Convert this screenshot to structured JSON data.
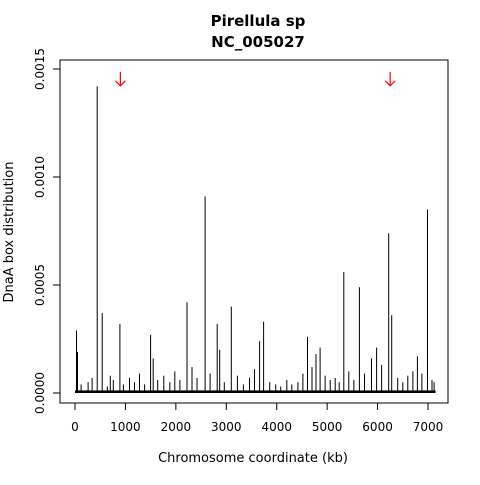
{
  "chart_data": {
    "type": "bar",
    "title": "Pirellula sp",
    "subtitle": "NC_005027",
    "xlabel": "Chromosome coordinate (kb)",
    "ylabel": "DnaA box distribution",
    "xlim": [
      0,
      7150
    ],
    "ylim": [
      0,
      0.0015
    ],
    "x_ticks": [
      0,
      1000,
      2000,
      3000,
      4000,
      5000,
      6000,
      7000
    ],
    "x_tick_labels": [
      "0",
      "1000",
      "2000",
      "3000",
      "4000",
      "5000",
      "6000",
      "7000"
    ],
    "y_ticks": [
      0,
      0.0005,
      0.001,
      0.0015
    ],
    "y_tick_labels": [
      "0.0000",
      "0.0005",
      "0.0010",
      "0.0015"
    ],
    "grid": false,
    "peaks": [
      {
        "x": 30,
        "y": 0.00029
      },
      {
        "x": 50,
        "y": 0.00019
      },
      {
        "x": 440,
        "y": 0.00142
      },
      {
        "x": 540,
        "y": 0.00037
      },
      {
        "x": 890,
        "y": 0.00032
      },
      {
        "x": 1500,
        "y": 0.00027
      },
      {
        "x": 1550,
        "y": 0.00016
      },
      {
        "x": 2220,
        "y": 0.00042
      },
      {
        "x": 2580,
        "y": 0.00091
      },
      {
        "x": 2820,
        "y": 0.00032
      },
      {
        "x": 2870,
        "y": 0.0002
      },
      {
        "x": 3100,
        "y": 0.0004
      },
      {
        "x": 3660,
        "y": 0.00024
      },
      {
        "x": 3740,
        "y": 0.00033
      },
      {
        "x": 4610,
        "y": 0.00026
      },
      {
        "x": 4780,
        "y": 0.00018
      },
      {
        "x": 4860,
        "y": 0.00021
      },
      {
        "x": 5330,
        "y": 0.00056
      },
      {
        "x": 5640,
        "y": 0.00049
      },
      {
        "x": 5880,
        "y": 0.00016
      },
      {
        "x": 5980,
        "y": 0.00021
      },
      {
        "x": 6220,
        "y": 0.00074
      },
      {
        "x": 6280,
        "y": 0.00036
      },
      {
        "x": 6790,
        "y": 0.00017
      },
      {
        "x": 6990,
        "y": 0.00085
      }
    ],
    "baseline_peaks": [
      {
        "x": 120,
        "y": 4e-05
      },
      {
        "x": 260,
        "y": 5e-05
      },
      {
        "x": 340,
        "y": 7e-05
      },
      {
        "x": 640,
        "y": 3e-05
      },
      {
        "x": 700,
        "y": 8e-05
      },
      {
        "x": 760,
        "y": 6e-05
      },
      {
        "x": 960,
        "y": 4e-05
      },
      {
        "x": 1080,
        "y": 7e-05
      },
      {
        "x": 1180,
        "y": 5e-05
      },
      {
        "x": 1280,
        "y": 9e-05
      },
      {
        "x": 1380,
        "y": 4e-05
      },
      {
        "x": 1640,
        "y": 6e-05
      },
      {
        "x": 1760,
        "y": 8e-05
      },
      {
        "x": 1880,
        "y": 5e-05
      },
      {
        "x": 1980,
        "y": 0.0001
      },
      {
        "x": 2080,
        "y": 6e-05
      },
      {
        "x": 2320,
        "y": 0.00012
      },
      {
        "x": 2420,
        "y": 7e-05
      },
      {
        "x": 2680,
        "y": 9e-05
      },
      {
        "x": 2960,
        "y": 5e-05
      },
      {
        "x": 3220,
        "y": 8e-05
      },
      {
        "x": 3340,
        "y": 4e-05
      },
      {
        "x": 3460,
        "y": 7e-05
      },
      {
        "x": 3560,
        "y": 0.00011
      },
      {
        "x": 3860,
        "y": 5e-05
      },
      {
        "x": 3980,
        "y": 4e-05
      },
      {
        "x": 4080,
        "y": 3e-05
      },
      {
        "x": 4200,
        "y": 6e-05
      },
      {
        "x": 4300,
        "y": 4e-05
      },
      {
        "x": 4420,
        "y": 5e-05
      },
      {
        "x": 4520,
        "y": 9e-05
      },
      {
        "x": 4700,
        "y": 0.00012
      },
      {
        "x": 4960,
        "y": 8e-05
      },
      {
        "x": 5060,
        "y": 6e-05
      },
      {
        "x": 5160,
        "y": 7e-05
      },
      {
        "x": 5240,
        "y": 5e-05
      },
      {
        "x": 5430,
        "y": 0.0001
      },
      {
        "x": 5530,
        "y": 6e-05
      },
      {
        "x": 5740,
        "y": 9e-05
      },
      {
        "x": 6080,
        "y": 0.00013
      },
      {
        "x": 6400,
        "y": 7e-05
      },
      {
        "x": 6500,
        "y": 5e-05
      },
      {
        "x": 6600,
        "y": 8e-05
      },
      {
        "x": 6700,
        "y": 0.0001
      },
      {
        "x": 6880,
        "y": 9e-05
      },
      {
        "x": 7080,
        "y": 6e-05
      },
      {
        "x": 7120,
        "y": 5e-05
      }
    ],
    "annotations": [
      {
        "type": "arrow",
        "x": 900,
        "y": 0.00145,
        "color": "#ff0000",
        "direction": "down"
      },
      {
        "type": "arrow",
        "x": 6250,
        "y": 0.00145,
        "color": "#ff0000",
        "direction": "down"
      }
    ],
    "colors": {
      "bars": "#000000",
      "arrows": "#ff0000"
    }
  }
}
